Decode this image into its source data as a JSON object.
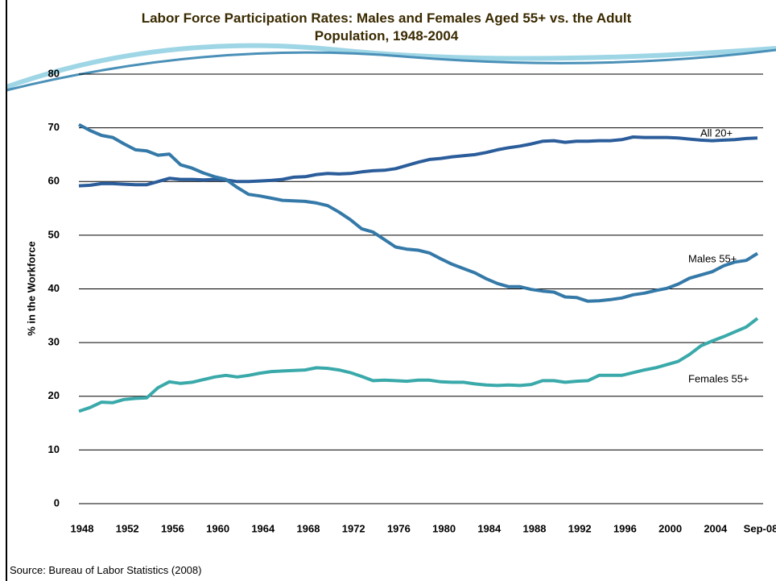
{
  "chart_data": {
    "type": "line",
    "title": "Labor Force Participation Rates: Males and Females Aged 55+ vs. the Adult Population, 1948-2004",
    "y_label": "% in the Workforce",
    "categories": [
      "1948",
      null,
      null,
      null,
      "1952",
      null,
      null,
      null,
      "1956",
      null,
      null,
      null,
      "1960",
      null,
      null,
      null,
      "1964",
      null,
      null,
      null,
      "1968",
      null,
      null,
      null,
      "1972",
      null,
      null,
      null,
      "1976",
      null,
      null,
      null,
      "1980",
      null,
      null,
      null,
      "1984",
      null,
      null,
      null,
      "1988",
      null,
      null,
      null,
      "1992",
      null,
      null,
      null,
      "1996",
      null,
      null,
      null,
      "2000",
      null,
      null,
      null,
      "2004",
      null,
      null,
      null,
      "Sep-08"
    ],
    "series": [
      {
        "name": "All 20+",
        "color": "#2b5d9b",
        "values": [
          59.2,
          59.3,
          59.6,
          59.6,
          59.5,
          59.4,
          59.4,
          60.0,
          60.6,
          60.4,
          60.4,
          60.3,
          60.4,
          60.3,
          60.0,
          60.0,
          60.1,
          60.2,
          60.4,
          60.8,
          60.9,
          61.3,
          61.5,
          61.4,
          61.5,
          61.8,
          62.0,
          62.1,
          62.4,
          63.0,
          63.6,
          64.1,
          64.3,
          64.6,
          64.8,
          65.0,
          65.4,
          65.9,
          66.3,
          66.6,
          67.0,
          67.5,
          67.6,
          67.3,
          67.5,
          67.5,
          67.6,
          67.6,
          67.8,
          68.3,
          68.2,
          68.2,
          68.2,
          68.1,
          67.9,
          67.7,
          67.6,
          67.7,
          67.8,
          68.0,
          68.1
        ]
      },
      {
        "name": "Males 55+",
        "color": "#3479a8",
        "values": [
          70.6,
          69.5,
          68.6,
          68.2,
          67.0,
          65.9,
          65.7,
          64.9,
          65.1,
          63.1,
          62.5,
          61.6,
          60.9,
          60.4,
          58.9,
          57.6,
          57.3,
          56.9,
          56.5,
          56.4,
          56.3,
          56.0,
          55.5,
          54.3,
          52.9,
          51.2,
          50.6,
          49.2,
          47.8,
          47.4,
          47.2,
          46.7,
          45.6,
          44.6,
          43.8,
          43.0,
          41.9,
          41.0,
          40.4,
          40.4,
          39.9,
          39.6,
          39.4,
          38.5,
          38.4,
          37.7,
          37.8,
          38.0,
          38.3,
          38.9,
          39.2,
          39.7,
          40.1,
          40.9,
          42.0,
          42.6,
          43.2,
          44.3,
          45.0,
          45.3,
          46.6
        ]
      },
      {
        "name": "Females 55+",
        "color": "#3aa9aa",
        "values": [
          17.2,
          17.9,
          18.9,
          18.8,
          19.4,
          19.6,
          19.7,
          21.6,
          22.7,
          22.4,
          22.6,
          23.1,
          23.6,
          23.9,
          23.6,
          23.9,
          24.3,
          24.6,
          24.7,
          24.8,
          24.9,
          25.3,
          25.2,
          24.9,
          24.4,
          23.7,
          22.9,
          23.0,
          22.9,
          22.8,
          23.0,
          23.0,
          22.7,
          22.6,
          22.6,
          22.3,
          22.1,
          22.0,
          22.1,
          22.0,
          22.2,
          22.9,
          22.9,
          22.6,
          22.8,
          22.9,
          23.9,
          23.9,
          23.9,
          24.4,
          24.9,
          25.3,
          25.9,
          26.5,
          27.8,
          29.4,
          30.3,
          31.1,
          32.0,
          32.9,
          34.5
        ]
      }
    ],
    "ylim": [
      0,
      80
    ],
    "yticks": [
      0,
      10,
      20,
      30,
      40,
      50,
      60,
      70,
      80
    ],
    "grid": true
  },
  "source": "Source: Bureau of Labor Statistics (2008)"
}
